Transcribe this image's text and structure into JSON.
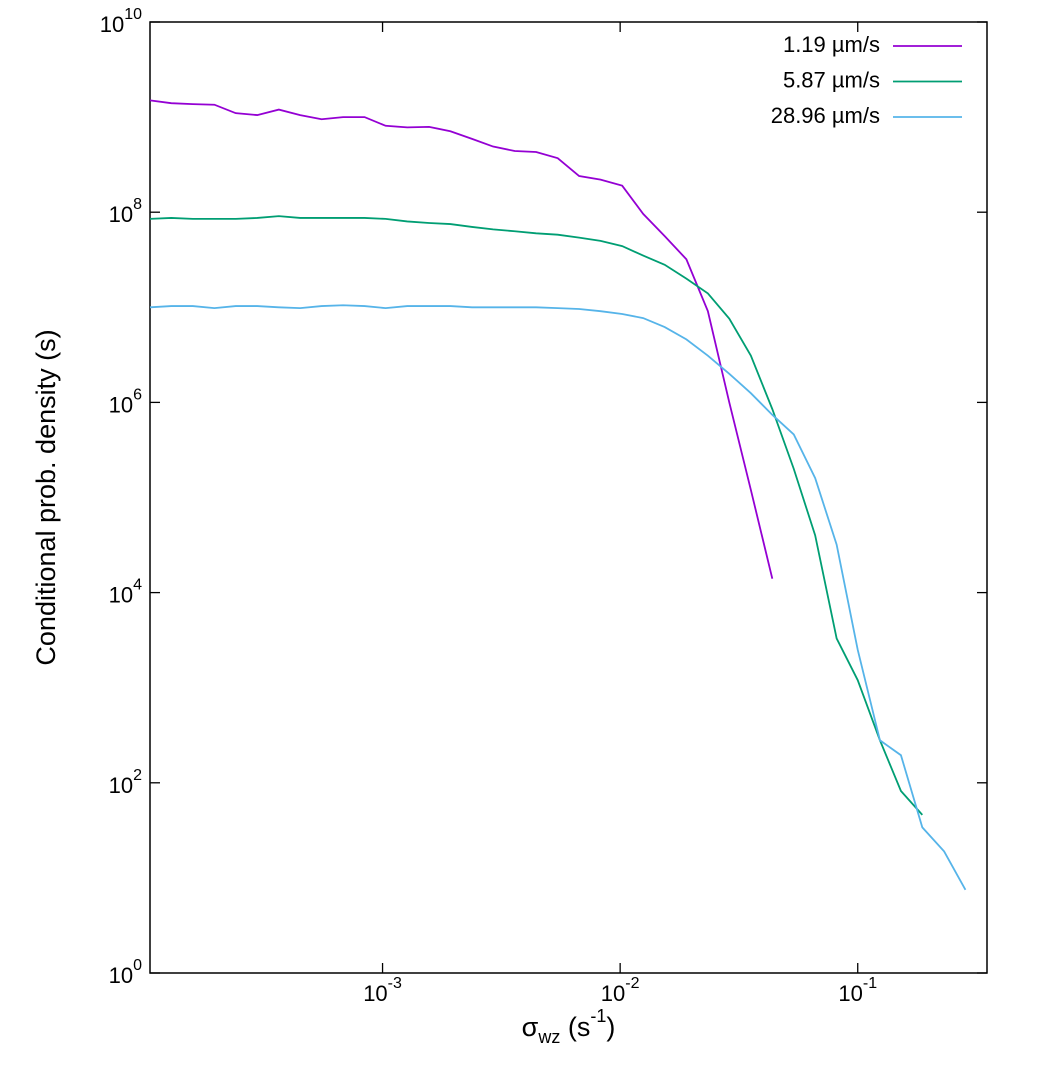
{
  "chart_data": {
    "type": "line",
    "log_x": true,
    "log_y": true,
    "x_label": [
      "σ",
      "wz",
      " (s",
      "-1",
      ")"
    ],
    "y_label": "Conditional prob. density (s)",
    "legend": "top-right",
    "xlim": [
      0.000105,
      0.35
    ],
    "ylim": [
      1,
      10000000000
    ],
    "xticks": [
      {
        "value": 0.001,
        "label": [
          "10",
          "-3"
        ]
      },
      {
        "value": 0.01,
        "label": [
          "10",
          "-2"
        ]
      },
      {
        "value": 0.1,
        "label": [
          "10",
          "-1"
        ]
      }
    ],
    "yticks": [
      {
        "value": 1,
        "label": [
          "10",
          "0"
        ]
      },
      {
        "value": 100,
        "label": [
          "10",
          "2"
        ]
      },
      {
        "value": 10000,
        "label": [
          "10",
          "4"
        ]
      },
      {
        "value": 1000000,
        "label": [
          "10",
          "6"
        ]
      },
      {
        "value": 100000000,
        "label": [
          "10",
          "8"
        ]
      },
      {
        "value": 10000000000,
        "label": [
          "10",
          "10"
        ]
      }
    ],
    "x": [
      0.000105,
      0.000129,
      0.000159,
      0.000196,
      0.000241,
      0.000297,
      0.000366,
      0.00045,
      0.000554,
      0.000682,
      0.00084,
      0.00103,
      0.00127,
      0.00157,
      0.00193,
      0.00238,
      0.00292,
      0.0036,
      0.00443,
      0.00546,
      0.00672,
      0.00827,
      0.0102,
      0.0125,
      0.0154,
      0.019,
      0.0234,
      0.0288,
      0.0355,
      0.0437,
      0.0538,
      0.0662,
      0.0815,
      0.1,
      0.124,
      0.152,
      0.187,
      0.231,
      0.284
    ],
    "series": [
      {
        "name": "1.19 µm/s",
        "color": "#9400d3",
        "values": [
          1500000000,
          1400000000,
          1370000000,
          1350000000,
          1100000000,
          1050000000,
          1200000000,
          1050000000,
          950000000,
          1000000000,
          1000000000,
          810000000,
          780000000,
          790000000,
          710000000,
          590000000,
          490000000,
          440000000,
          430000000,
          370000000,
          240000000,
          220000000,
          190000000,
          96000000,
          56000000,
          32000000,
          9100000,
          1000000,
          120000,
          14000,
          null,
          null,
          null,
          null,
          null,
          null,
          null,
          null,
          null
        ]
      },
      {
        "name": "5.87 µm/s",
        "color": "#009e73",
        "values": [
          85000000,
          87000000,
          85000000,
          85000000,
          85000000,
          87000000,
          91000000,
          87000000,
          87000000,
          87000000,
          87000000,
          85000000,
          80000000,
          77000000,
          75000000,
          70000000,
          66000000,
          63000000,
          60000000,
          58000000,
          54000000,
          50000000,
          44000000,
          35000000,
          28000000,
          20000000,
          14000000,
          7600000,
          3100000,
          850000,
          200000,
          40000,
          3300,
          1200,
          280,
          82,
          46,
          null,
          null
        ]
      },
      {
        "name": "28.96 µm/s",
        "color": "#56b4e9",
        "values": [
          10000000,
          10300000,
          10300000,
          9800000,
          10300000,
          10300000,
          10000000,
          9800000,
          10300000,
          10500000,
          10300000,
          9800000,
          10300000,
          10300000,
          10300000,
          10000000,
          10000000,
          10000000,
          10000000,
          9800000,
          9600000,
          9100000,
          8500000,
          7700000,
          6200000,
          4600000,
          3100000,
          2000000,
          1250000,
          740000,
          460000,
          160000,
          32000,
          2500,
          280,
          195,
          34,
          19,
          7.5
        ]
      }
    ]
  }
}
